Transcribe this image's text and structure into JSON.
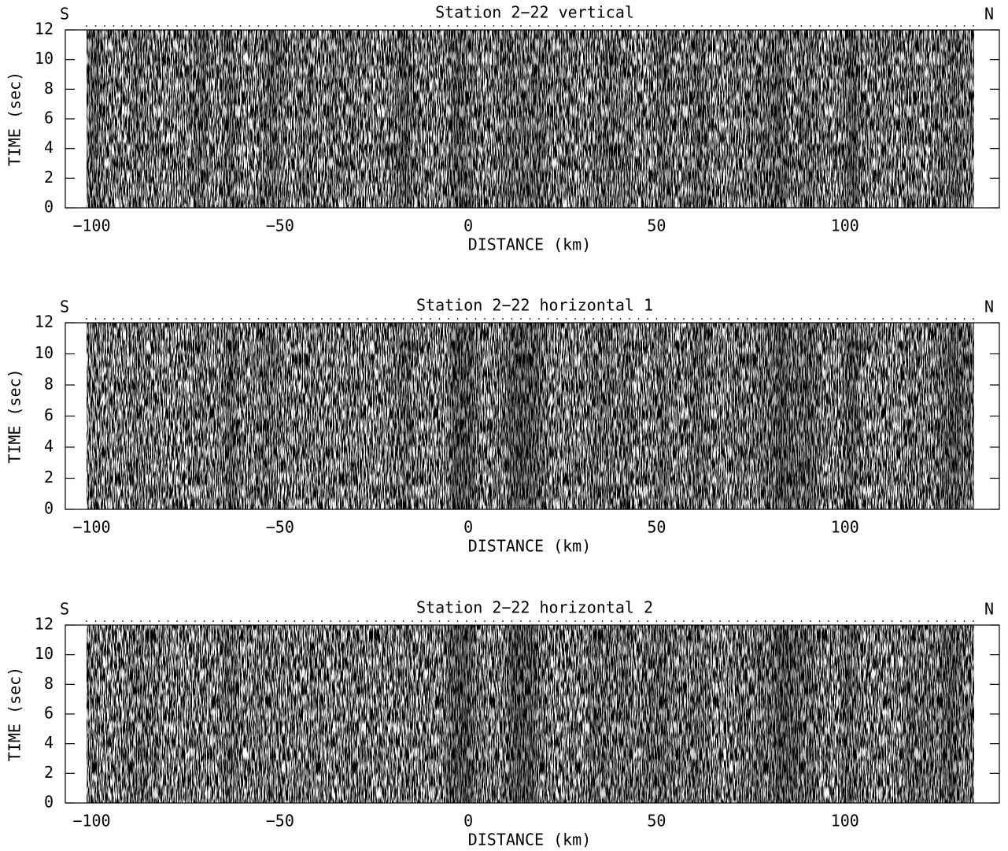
{
  "chart_data": [
    {
      "type": "seismic",
      "title": "Station 2−22 vertical",
      "left_label": "S",
      "right_label": "N",
      "xlabel": "DISTANCE (km)",
      "ylabel": "TIME (sec)",
      "xlim": [
        -107,
        141
      ],
      "ylim": [
        0,
        12
      ],
      "xticks": [
        {
          "value": -100,
          "label": "−100"
        },
        {
          "value": -50,
          "label": "−50"
        },
        0,
        50,
        100
      ],
      "yticks": [
        0,
        2,
        4,
        6,
        8,
        10,
        12
      ]
    },
    {
      "type": "seismic",
      "title": "Station 2−22 horizontal 1",
      "left_label": "S",
      "right_label": "N",
      "xlabel": "DISTANCE (km)",
      "ylabel": "TIME (sec)",
      "xlim": [
        -107,
        141
      ],
      "ylim": [
        0,
        12
      ],
      "xticks": [
        {
          "value": -100,
          "label": "−100"
        },
        {
          "value": -50,
          "label": "−50"
        },
        0,
        50,
        100
      ],
      "yticks": [
        0,
        2,
        4,
        6,
        8,
        10,
        12
      ]
    },
    {
      "type": "seismic",
      "title": "Station 2−22 horizontal 2",
      "left_label": "S",
      "right_label": "N",
      "xlabel": "DISTANCE (km)",
      "ylabel": "TIME (sec)",
      "xlim": [
        -107,
        141
      ],
      "ylim": [
        0,
        12
      ],
      "xticks": [
        {
          "value": -100,
          "label": "−100"
        },
        {
          "value": -50,
          "label": "−50"
        },
        0,
        50,
        100
      ],
      "yticks": [
        0,
        2,
        4,
        6,
        8,
        10,
        12
      ]
    }
  ]
}
